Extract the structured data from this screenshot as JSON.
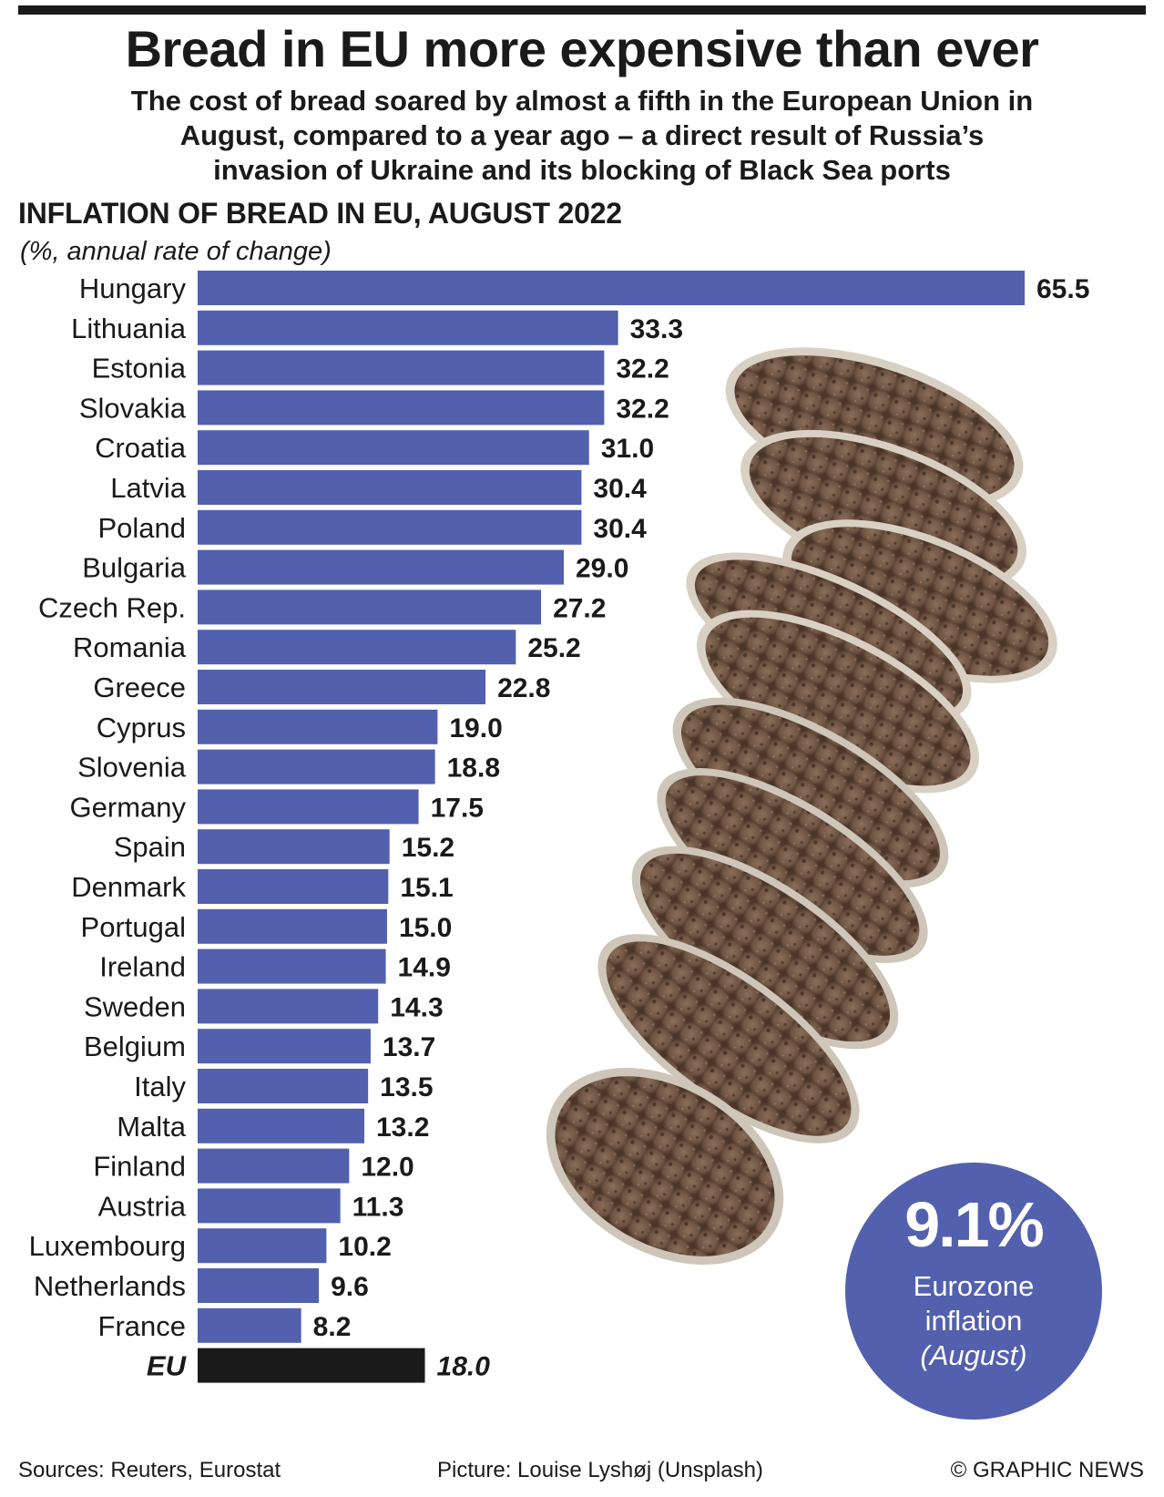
{
  "header": {
    "title": "Bread in EU more expensive than ever",
    "subtitle_lines": [
      "The cost of bread soared by almost a fifth in the European Union in",
      "August, compared to a year ago – a direct result of Russia’s",
      "invasion of Ukraine and its blocking of Black Sea ports"
    ]
  },
  "chart_data": {
    "type": "bar",
    "orientation": "horizontal",
    "title": "INFLATION OF BREAD IN EU, AUGUST 2022",
    "subtitle": "(%, annual rate of change)",
    "categories": [
      "Hungary",
      "Lithuania",
      "Estonia",
      "Slovakia",
      "Croatia",
      "Latvia",
      "Poland",
      "Bulgaria",
      "Czech Rep.",
      "Romania",
      "Greece",
      "Cyprus",
      "Slovenia",
      "Germany",
      "Spain",
      "Denmark",
      "Portugal",
      "Ireland",
      "Sweden",
      "Belgium",
      "Italy",
      "Malta",
      "Finland",
      "Austria",
      "Luxembourg",
      "Netherlands",
      "France",
      "EU"
    ],
    "values": [
      65.5,
      33.3,
      32.2,
      32.2,
      31.0,
      30.4,
      30.4,
      29.0,
      27.2,
      25.2,
      22.8,
      19.0,
      18.8,
      17.5,
      15.2,
      15.1,
      15.0,
      14.9,
      14.3,
      13.7,
      13.5,
      13.2,
      12.0,
      11.3,
      10.2,
      9.6,
      8.2,
      18.0
    ],
    "value_labels": [
      "65.5",
      "33.3",
      "32.2",
      "32.2",
      "31.0",
      "30.4",
      "30.4",
      "29.0",
      "27.2",
      "25.2",
      "22.8",
      "19.0",
      "18.8",
      "17.5",
      "15.2",
      "15.1",
      "15.0",
      "14.9",
      "14.3",
      "13.7",
      "13.5",
      "13.2",
      "12.0",
      "11.3",
      "10.2",
      "9.6",
      "8.2",
      "18.0"
    ],
    "highlight_category": "EU",
    "xlim": [
      0,
      65.5
    ],
    "grid": false,
    "colors": {
      "bar": "#5360ad",
      "highlight": "#1a1a1a"
    }
  },
  "callout": {
    "value": "9.1%",
    "line1": "Eurozone",
    "line2": "inflation",
    "line3": "(August)",
    "color": "#5360ad"
  },
  "footer": {
    "sources": "Sources: Reuters, Eurostat",
    "picture": "Picture: Louise Lyshøj (Unsplash)",
    "credit": "© GRAPHIC NEWS"
  },
  "illustration": {
    "icon": "sliced-bread-loaf-photo"
  }
}
